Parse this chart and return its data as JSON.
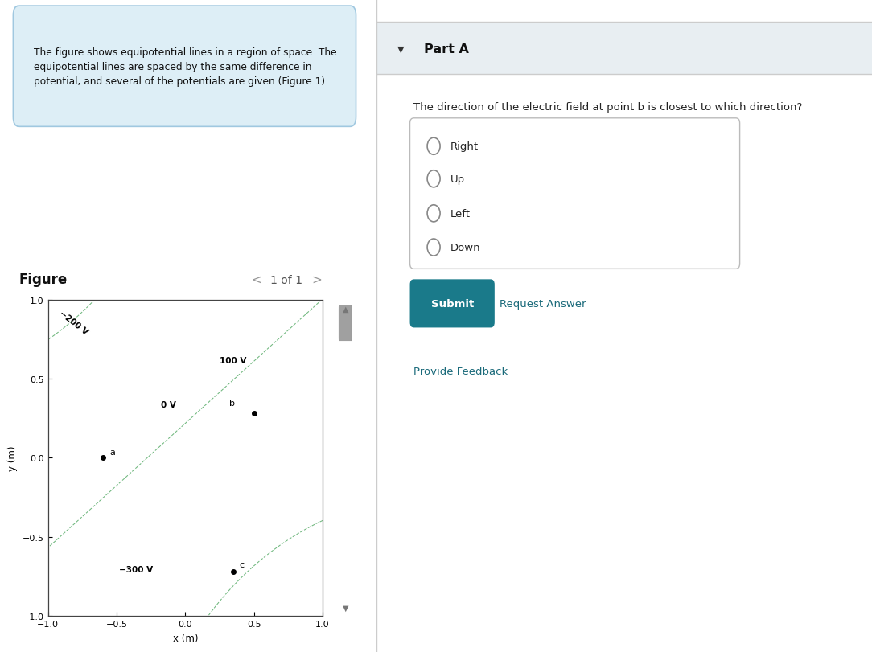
{
  "fig_width": 10.84,
  "fig_height": 8.12,
  "bg_color": "#ffffff",
  "info_box_text": "The figure shows equipotential lines in a region of space. The\nequipotential lines are spaced by the same difference in\npotential, and several of the potentials are given.(Figure 1)",
  "info_box_bg": "#ddeef6",
  "info_box_border": "#a0c8e0",
  "part_a_header": "Part A",
  "part_a_bg": "#e8eef2",
  "question_text": "The direction of the electric field at point b is closest to which direction?",
  "options": [
    "Right",
    "Up",
    "Left",
    "Down"
  ],
  "submit_bg": "#1a7a8a",
  "submit_text_color": "#ffffff",
  "request_answer_color": "#1a6a7a",
  "provide_feedback_color": "#1a6a7a",
  "figure_label": "Figure",
  "figure_nav": "1 of 1",
  "plot_xlim": [
    -1.0,
    1.0
  ],
  "plot_ylim": [
    -1.0,
    1.0
  ],
  "xlabel": "x (m)",
  "ylabel": "y (m)",
  "xticks": [
    -1.0,
    -0.5,
    0.0,
    0.5,
    1.0
  ],
  "yticks": [
    -1.0,
    -0.5,
    0.0,
    0.5,
    1.0
  ],
  "contour_color": "#60b070",
  "point_a": [
    -0.6,
    0.0
  ],
  "point_b": [
    0.5,
    0.28
  ],
  "point_c": [
    0.35,
    -0.72
  ],
  "separator_color": "#cccccc",
  "scrollbar_bg": "#d0d0d0",
  "scrollbar_thumb": "#a0a0a0"
}
